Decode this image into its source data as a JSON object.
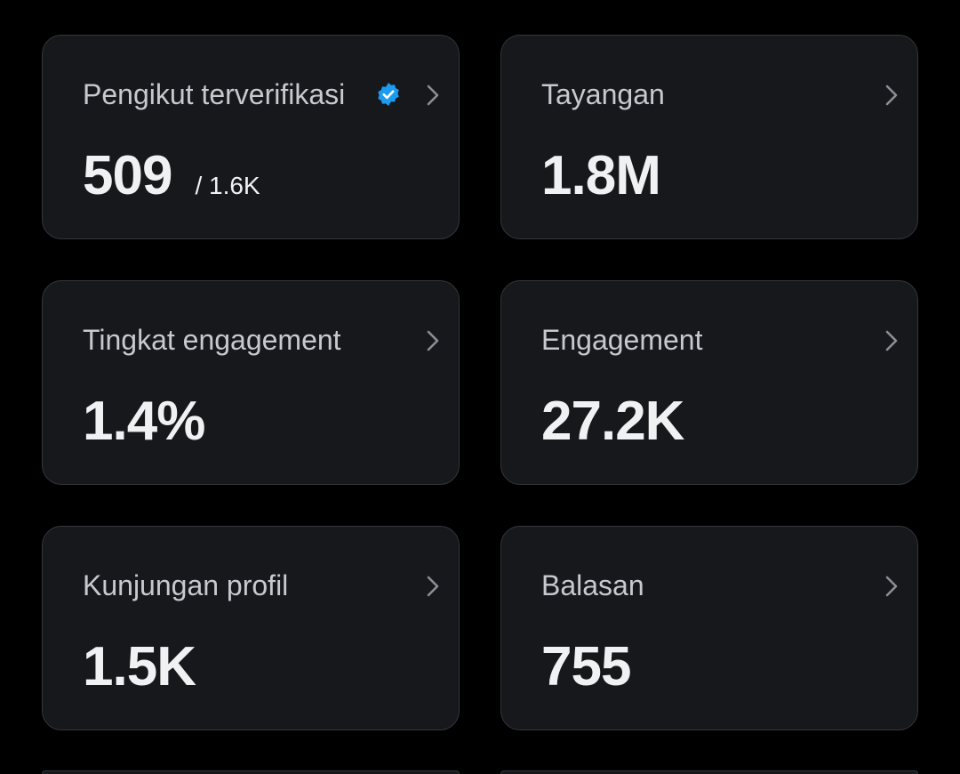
{
  "cards": [
    {
      "title": "Pengikut terverifikasi",
      "value": "509",
      "secondary": "/ 1.6K",
      "verified": true
    },
    {
      "title": "Tayangan",
      "value": "1.8M"
    },
    {
      "title": "Tingkat engagement",
      "value": "1.4%"
    },
    {
      "title": "Engagement",
      "value": "27.2K"
    },
    {
      "title": "Kunjungan profil",
      "value": "1.5K"
    },
    {
      "title": "Balasan",
      "value": "755"
    }
  ]
}
